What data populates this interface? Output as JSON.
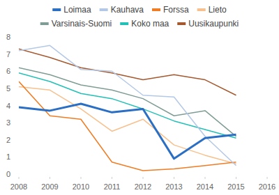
{
  "chart_data": {
    "type": "line",
    "x": [
      2008,
      2009,
      2010,
      2011,
      2012,
      2013,
      2014,
      2015
    ],
    "xlim": [
      2008,
      2016
    ],
    "xticks": [
      2008,
      2009,
      2010,
      2011,
      2012,
      2013,
      2014,
      2015,
      2016
    ],
    "ylim": [
      0,
      8
    ],
    "yticks": [
      0,
      1,
      2,
      3,
      4,
      5,
      6,
      7,
      8
    ],
    "grid": false,
    "legend": "top",
    "series": [
      {
        "name": "Loimaa",
        "color": "#2a6fc4",
        "values": [
          3.9,
          3.7,
          4.1,
          3.6,
          3.8,
          0.9,
          2.1,
          2.3
        ]
      },
      {
        "name": "Kauhava",
        "color": "#b3c8e6",
        "values": [
          7.2,
          7.5,
          6.1,
          6.0,
          4.6,
          4.5,
          2.2,
          0.5
        ]
      },
      {
        "name": "Forssa",
        "color": "#f07c23",
        "values": [
          5.4,
          3.4,
          3.2,
          0.7,
          0.2,
          0.3,
          0.5,
          0.7
        ]
      },
      {
        "name": "Lieto",
        "color": "#f7c08c",
        "values": [
          5.1,
          4.9,
          3.8,
          2.5,
          3.2,
          1.7,
          1.1,
          0.6
        ]
      },
      {
        "name": "Varsinais-Suomi",
        "color": "#7f9d95",
        "values": [
          6.2,
          5.8,
          5.2,
          4.9,
          4.4,
          3.4,
          3.7,
          2.2
        ]
      },
      {
        "name": "Koko maa",
        "color": "#22c0b6",
        "values": [
          5.9,
          5.4,
          4.7,
          4.4,
          3.8,
          3.1,
          2.6,
          2.1
        ]
      },
      {
        "name": "Uusikaupunki",
        "color": "#a5582e",
        "values": [
          7.3,
          6.8,
          6.2,
          5.9,
          5.5,
          5.8,
          5.5,
          4.6
        ]
      }
    ]
  }
}
